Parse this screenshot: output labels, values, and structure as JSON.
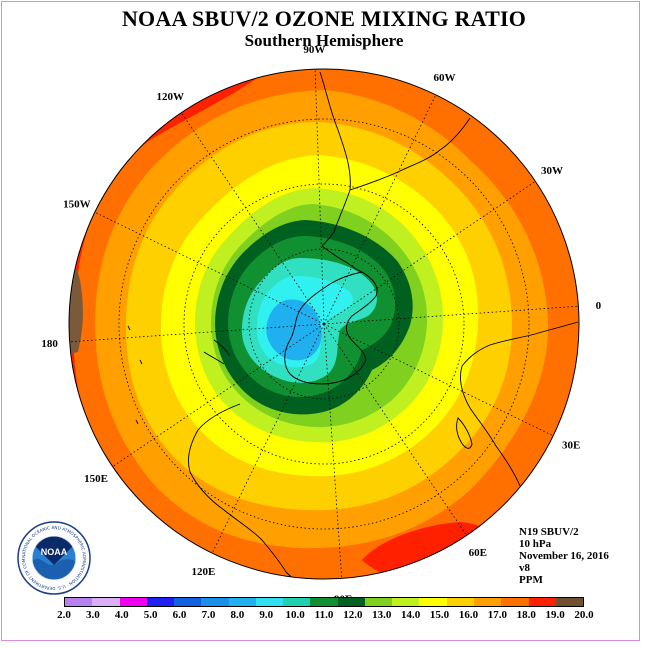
{
  "title": "NOAA SBUV/2 OZONE MIXING RATIO",
  "subtitle": "Southern Hemisphere",
  "longitude_labels": [
    {
      "lon": "90W",
      "angle": -92
    },
    {
      "lon": "60W",
      "angle": -64
    },
    {
      "lon": "30W",
      "angle": -34
    },
    {
      "lon": "0",
      "angle": -4
    },
    {
      "lon": "30E",
      "angle": 26
    },
    {
      "lon": "60E",
      "angle": 56
    },
    {
      "lon": "90E",
      "angle": 86
    },
    {
      "lon": "120E",
      "angle": 116
    },
    {
      "lon": "150E",
      "angle": 146
    },
    {
      "lon": "180",
      "angle": 176
    },
    {
      "lon": "150W",
      "angle": -154
    },
    {
      "lon": "120W",
      "angle": -124
    }
  ],
  "info": {
    "instrument": "N19 SBUV/2",
    "pressure_level": "10 hPa",
    "date": "November 16, 2016",
    "version": "v8",
    "units": "PPM"
  },
  "colorbar": {
    "ticks": [
      "2.0",
      "3.0",
      "4.0",
      "5.0",
      "6.0",
      "7.0",
      "8.0",
      "9.0",
      "10.0",
      "11.0",
      "12.0",
      "13.0",
      "14.0",
      "15.0",
      "16.0",
      "17.0",
      "18.0",
      "19.0",
      "20.0"
    ],
    "colors": [
      "#b980f0",
      "#d9b0f5",
      "#f000f0",
      "#2020f0",
      "#1060e0",
      "#1a90e8",
      "#20b0f0",
      "#30e0f0",
      "#20d0b0",
      "#109030",
      "#006020",
      "#80d020",
      "#c0f020",
      "#ffff00",
      "#ffd000",
      "#ffa000",
      "#ff7000",
      "#ff2000",
      "#705030"
    ]
  },
  "map_colors": {
    "c20": "#7a5a3a",
    "c19": "#ff2000",
    "c18": "#ff7000",
    "c17": "#ffa000",
    "c16": "#ffd000",
    "c15": "#ffff00",
    "c14": "#c0f020",
    "c13": "#80d020",
    "c12": "#006020",
    "c11": "#109030",
    "c10": "#30e0c0",
    "c9": "#30f0f0",
    "c8": "#20b0f0"
  },
  "logo": {
    "name": "NOAA",
    "ring_text": "NATIONAL OCEANIC AND ATMOSPHERIC ADMINISTRATION · U.S. DEPARTMENT OF COMMERCE"
  }
}
